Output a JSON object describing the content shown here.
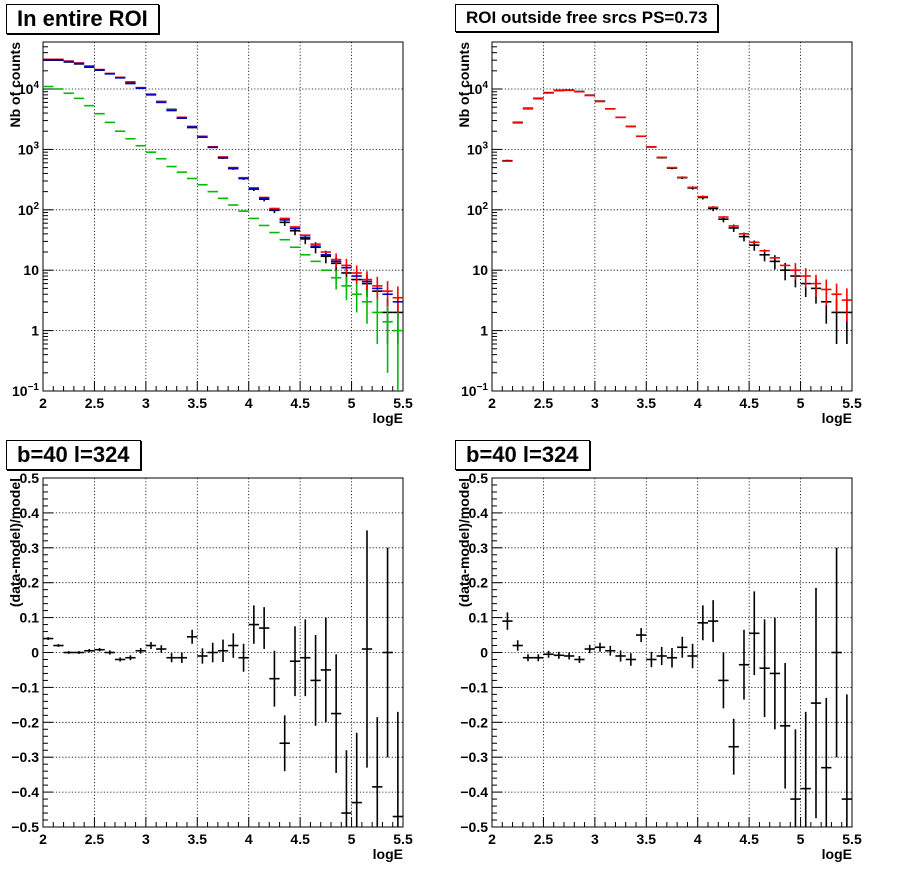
{
  "chart_data": [
    {
      "type": "scatter",
      "title": "In entire ROI",
      "xlabel": "logE",
      "ylabel": "Nb of counts",
      "xlim": [
        2,
        5.5
      ],
      "ylim": [
        0.1,
        60000
      ],
      "yscale": "log",
      "grid": true,
      "x_ticks": [
        "2",
        "2.5",
        "3",
        "3.5",
        "4",
        "4.5",
        "5",
        "5.5"
      ],
      "y_ticks": [
        {
          "v": 0.1,
          "base": "10",
          "exp": "−1"
        },
        {
          "v": 1,
          "text": "1"
        },
        {
          "v": 10,
          "text": "10"
        },
        {
          "v": 100,
          "base": "10",
          "exp": "2"
        },
        {
          "v": 1000,
          "base": "10",
          "exp": "3"
        },
        {
          "v": 10000,
          "base": "10",
          "exp": "4"
        }
      ],
      "x": [
        2.05,
        2.15,
        2.25,
        2.35,
        2.45,
        2.55,
        2.65,
        2.75,
        2.85,
        2.95,
        3.05,
        3.15,
        3.25,
        3.35,
        3.45,
        3.55,
        3.65,
        3.75,
        3.85,
        3.95,
        4.05,
        4.15,
        4.25,
        4.35,
        4.45,
        4.55,
        4.65,
        4.75,
        4.85,
        4.95,
        5.05,
        5.15,
        5.25,
        5.35,
        5.45
      ],
      "series": [
        {
          "color": "#000000",
          "values": [
            30000,
            30000,
            28000,
            26000,
            23000,
            20500,
            18000,
            15500,
            13000,
            10500,
            8200,
            6200,
            4600,
            3300,
            2300,
            1600,
            1100,
            720,
            480,
            330,
            220,
            150,
            98,
            62,
            45,
            33,
            24,
            17,
            13,
            9,
            7,
            6,
            4.5,
            2,
            2
          ],
          "yerr": [
            170,
            170,
            165,
            160,
            150,
            140,
            130,
            125,
            115,
            100,
            90,
            80,
            68,
            57,
            48,
            40,
            33,
            27,
            22,
            18,
            15,
            12,
            10,
            8,
            7,
            6,
            5,
            4,
            3.6,
            3,
            2.6,
            2.4,
            2.1,
            1.4,
            1.4
          ]
        },
        {
          "color": "#ff0000",
          "values": [
            31000,
            31000,
            29000,
            27000,
            24000,
            21000,
            18000,
            15500,
            12500,
            10500,
            8200,
            6200,
            4500,
            3400,
            2400,
            1650,
            1100,
            750,
            500,
            340,
            230,
            160,
            105,
            72,
            52,
            38,
            27,
            20,
            15,
            12,
            9,
            7,
            5.5,
            4.5,
            3.5
          ],
          "yerr": [
            0,
            0,
            0,
            0,
            0,
            0,
            0,
            0,
            0,
            0,
            0,
            0,
            0,
            0,
            0,
            0,
            0,
            0,
            0,
            0,
            0,
            0,
            0,
            0,
            0,
            0,
            0,
            0,
            3.9,
            3.4,
            3,
            2.6,
            2.3,
            2.1,
            1.9
          ]
        },
        {
          "color": "#0000cc",
          "values": [
            30500,
            30500,
            28500,
            26500,
            23500,
            20700,
            17800,
            15300,
            12300,
            10300,
            8000,
            6000,
            4400,
            3300,
            2350,
            1600,
            1080,
            730,
            490,
            330,
            225,
            155,
            100,
            68,
            49,
            35,
            25,
            18,
            14,
            11,
            8,
            6.5,
            5,
            4,
            3
          ],
          "yerr": [
            0,
            0,
            0,
            0,
            0,
            0,
            0,
            0,
            0,
            0,
            0,
            0,
            0,
            0,
            0,
            0,
            0,
            0,
            0,
            0,
            0,
            0,
            0,
            0,
            0,
            0,
            0,
            0,
            0,
            0,
            0,
            0,
            0,
            0,
            0
          ]
        },
        {
          "color": "#00bb00",
          "values": [
            11000,
            10000,
            8500,
            7000,
            5300,
            3900,
            2800,
            2000,
            1500,
            1150,
            900,
            700,
            520,
            420,
            330,
            260,
            200,
            155,
            120,
            95,
            72,
            55,
            42,
            32,
            24,
            18,
            14,
            10,
            7.5,
            5.5,
            4,
            3,
            2,
            1.4,
            1
          ],
          "yerr": [
            0,
            0,
            0,
            0,
            0,
            0,
            0,
            0,
            0,
            0,
            0,
            0,
            0,
            0,
            0,
            0,
            0,
            0,
            0,
            0,
            0,
            0,
            0,
            0,
            0,
            0,
            0,
            0,
            2.7,
            2.3,
            2,
            1.7,
            1.4,
            1.2,
            1
          ]
        }
      ]
    },
    {
      "type": "scatter",
      "title": "ROI outside free srcs PS=0.73",
      "xlabel": "logE",
      "ylabel": "Nb of counts",
      "xlim": [
        2,
        5.5
      ],
      "ylim": [
        0.1,
        60000
      ],
      "yscale": "log",
      "grid": true,
      "x_ticks": [
        "2",
        "2.5",
        "3",
        "3.5",
        "4",
        "4.5",
        "5",
        "5.5"
      ],
      "y_ticks": [
        {
          "v": 0.1,
          "base": "10",
          "exp": "−1"
        },
        {
          "v": 1,
          "text": "1"
        },
        {
          "v": 10,
          "text": "10"
        },
        {
          "v": 100,
          "base": "10",
          "exp": "2"
        },
        {
          "v": 1000,
          "base": "10",
          "exp": "3"
        },
        {
          "v": 10000,
          "base": "10",
          "exp": "4"
        }
      ],
      "x": [
        2.15,
        2.25,
        2.35,
        2.45,
        2.55,
        2.65,
        2.75,
        2.85,
        2.95,
        3.05,
        3.15,
        3.25,
        3.35,
        3.45,
        3.55,
        3.65,
        3.75,
        3.85,
        3.95,
        4.05,
        4.15,
        4.25,
        4.35,
        4.45,
        4.55,
        4.65,
        4.75,
        4.85,
        4.95,
        5.05,
        5.15,
        5.25,
        5.35,
        5.45
      ],
      "series": [
        {
          "color": "#000000",
          "values": [
            650,
            2800,
            4800,
            7000,
            8700,
            9500,
            9600,
            9100,
            7900,
            6300,
            4700,
            3400,
            2400,
            1650,
            1100,
            730,
            490,
            340,
            230,
            160,
            105,
            70,
            50,
            36,
            26,
            18,
            14,
            10,
            8,
            6,
            5,
            3,
            2,
            2
          ],
          "yerr": [
            25,
            53,
            69,
            84,
            93,
            97,
            98,
            95,
            89,
            79,
            69,
            58,
            49,
            41,
            33,
            27,
            22,
            18,
            15,
            12,
            10,
            8,
            7,
            6,
            5,
            4,
            3.7,
            3.2,
            2.8,
            2.4,
            2.2,
            1.7,
            1.4,
            1.4
          ]
        },
        {
          "color": "#ff0000",
          "values": [
            640,
            2750,
            4700,
            6900,
            8600,
            9400,
            9500,
            9000,
            7800,
            6200,
            4700,
            3400,
            2400,
            1650,
            1100,
            740,
            500,
            345,
            235,
            165,
            110,
            76,
            54,
            40,
            29,
            21,
            16,
            12,
            10,
            8,
            6,
            4.8,
            4,
            3.2
          ],
          "yerr": [
            0,
            0,
            0,
            0,
            0,
            0,
            0,
            0,
            0,
            0,
            0,
            0,
            0,
            0,
            0,
            0,
            0,
            0,
            0,
            0,
            0,
            0,
            0,
            0,
            0,
            0,
            0,
            0,
            3.1,
            2.8,
            2.4,
            2.2,
            2,
            1.8
          ]
        }
      ]
    },
    {
      "type": "scatter",
      "title": "b=40 l=324",
      "xlabel": "logE",
      "ylabel": "(data-model)/model",
      "xlim": [
        2,
        5.5
      ],
      "ylim": [
        -0.5,
        0.5
      ],
      "grid": true,
      "x_ticks": [
        "2",
        "2.5",
        "3",
        "3.5",
        "4",
        "4.5",
        "5",
        "5.5"
      ],
      "y_ticks": [
        "−0.5",
        "−0.4",
        "−0.3",
        "−0.2",
        "−0.1",
        "0",
        "0.1",
        "0.2",
        "0.3",
        "0.4",
        "0.5"
      ],
      "x": [
        2.05,
        2.15,
        2.25,
        2.35,
        2.45,
        2.55,
        2.65,
        2.75,
        2.85,
        2.95,
        3.05,
        3.15,
        3.25,
        3.35,
        3.45,
        3.55,
        3.65,
        3.75,
        3.85,
        3.95,
        4.05,
        4.15,
        4.25,
        4.35,
        4.45,
        4.55,
        4.65,
        4.75,
        4.85,
        4.95,
        5.05,
        5.15,
        5.25,
        5.35,
        5.45
      ],
      "series": [
        {
          "color": "#000000",
          "values": [
            0.04,
            0.02,
            0.0,
            0.0,
            0.005,
            0.008,
            0.0,
            -0.02,
            -0.015,
            0.005,
            0.02,
            0.01,
            -0.015,
            -0.015,
            0.045,
            -0.01,
            0.0,
            0.005,
            0.02,
            -0.015,
            0.08,
            0.07,
            -0.075,
            -0.26,
            -0.025,
            -0.015,
            -0.08,
            -0.05,
            -0.175,
            -0.46,
            -0.43,
            0.01,
            -0.385,
            0.0,
            -0.47
          ],
          "yerr": [
            0.004,
            0.004,
            0.004,
            0.004,
            0.005,
            0.005,
            0.006,
            0.006,
            0.007,
            0.008,
            0.01,
            0.011,
            0.013,
            0.015,
            0.02,
            0.022,
            0.028,
            0.032,
            0.035,
            0.04,
            0.055,
            0.06,
            0.08,
            0.08,
            0.1,
            0.11,
            0.13,
            0.15,
            0.17,
            0.18,
            0.2,
            0.34,
            0.2,
            0.3,
            0.3
          ]
        }
      ]
    },
    {
      "type": "scatter",
      "title": "b=40 l=324",
      "xlabel": "logE",
      "ylabel": "(data-model)/model",
      "xlim": [
        2,
        5.5
      ],
      "ylim": [
        -0.5,
        0.5
      ],
      "grid": true,
      "x_ticks": [
        "2",
        "2.5",
        "3",
        "3.5",
        "4",
        "4.5",
        "5",
        "5.5"
      ],
      "y_ticks": [
        "−0.5",
        "−0.4",
        "−0.3",
        "−0.2",
        "−0.1",
        "0",
        "0.1",
        "0.2",
        "0.3",
        "0.4",
        "0.5"
      ],
      "x": [
        2.15,
        2.25,
        2.35,
        2.45,
        2.55,
        2.65,
        2.75,
        2.85,
        2.95,
        3.05,
        3.15,
        3.25,
        3.35,
        3.45,
        3.55,
        3.65,
        3.75,
        3.85,
        3.95,
        4.05,
        4.15,
        4.25,
        4.35,
        4.45,
        4.55,
        4.65,
        4.75,
        4.85,
        4.95,
        5.05,
        5.15,
        5.25,
        5.35,
        5.45
      ],
      "series": [
        {
          "color": "#000000",
          "values": [
            0.09,
            0.02,
            -0.015,
            -0.015,
            -0.005,
            -0.008,
            -0.01,
            -0.02,
            0.01,
            0.015,
            0.005,
            -0.01,
            -0.02,
            0.05,
            -0.02,
            -0.01,
            -0.015,
            0.015,
            -0.01,
            0.085,
            0.09,
            -0.08,
            -0.27,
            -0.035,
            0.055,
            -0.045,
            -0.06,
            -0.21,
            -0.42,
            -0.39,
            -0.145,
            -0.33,
            0.0,
            -0.42
          ],
          "yerr": [
            0.025,
            0.015,
            0.01,
            0.01,
            0.01,
            0.01,
            0.01,
            0.01,
            0.012,
            0.013,
            0.014,
            0.016,
            0.018,
            0.02,
            0.022,
            0.026,
            0.028,
            0.03,
            0.035,
            0.05,
            0.06,
            0.08,
            0.08,
            0.1,
            0.12,
            0.14,
            0.16,
            0.18,
            0.2,
            0.22,
            0.33,
            0.2,
            0.3,
            0.3
          ]
        }
      ]
    }
  ]
}
